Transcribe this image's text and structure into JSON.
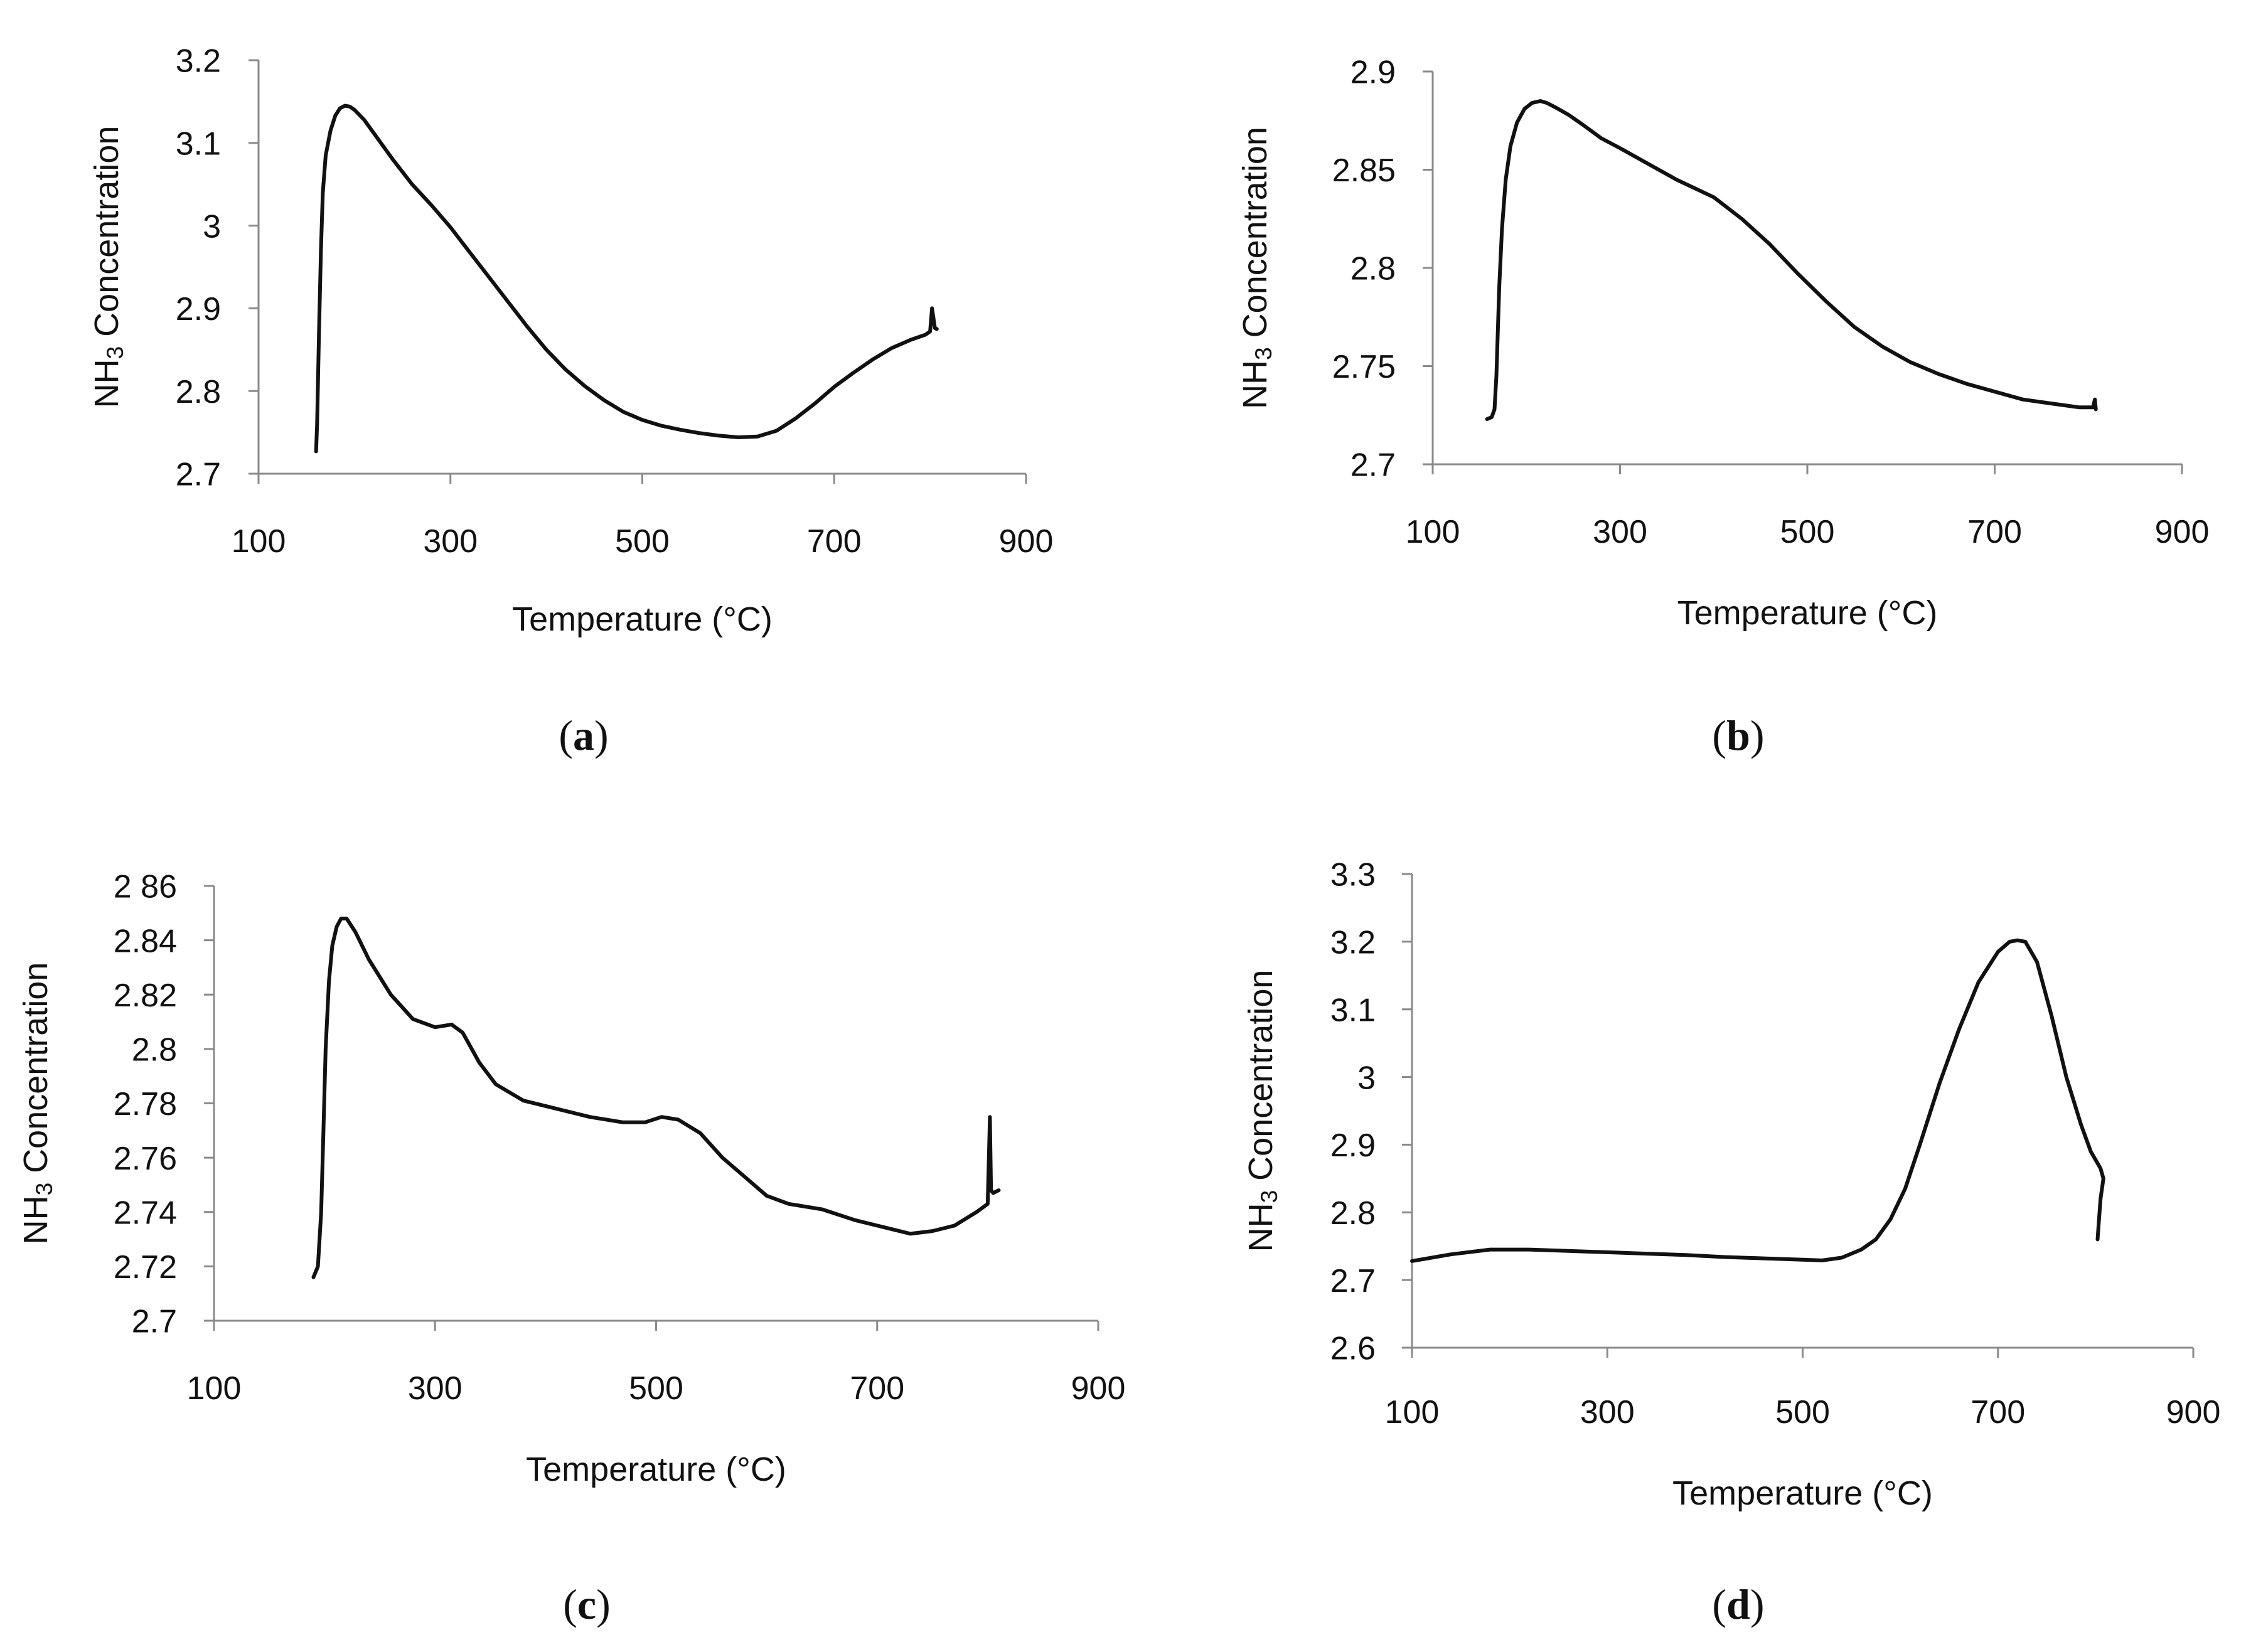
{
  "figure": {
    "panels": [
      {
        "id": "a",
        "caption_open": "(",
        "caption_letter": "a",
        "caption_close": ")"
      },
      {
        "id": "b",
        "caption_open": "(",
        "caption_letter": "b",
        "caption_close": ")"
      },
      {
        "id": "c",
        "caption_open": "(",
        "caption_letter": "c",
        "caption_close": ")"
      },
      {
        "id": "d",
        "caption_open": "(",
        "caption_letter": "d",
        "caption_close": ")"
      }
    ]
  },
  "colors": {
    "line": "#111111",
    "axis": "#8a8a8a",
    "text": "#111111"
  },
  "chart_data": [
    {
      "panel": "a",
      "type": "line",
      "xlabel": "Temperature (°C)",
      "ylabel_main": "NH",
      "ylabel_sub": "3",
      "ylabel_rest": " Concentration",
      "xlim": [
        100,
        900
      ],
      "ylim": [
        2.7,
        3.2
      ],
      "xticks": [
        100,
        300,
        500,
        700,
        900
      ],
      "yticks": [
        2.7,
        2.8,
        2.9,
        3,
        3.1,
        3.2
      ],
      "ytick_labels": [
        "2.7",
        "2.8",
        "2.9",
        "3",
        "3.1",
        "3.2"
      ],
      "series": [
        {
          "name": "NH3",
          "x": [
            160,
            161,
            163,
            165,
            167,
            170,
            175,
            180,
            185,
            190,
            195,
            200,
            210,
            220,
            240,
            260,
            280,
            300,
            320,
            340,
            360,
            380,
            400,
            420,
            440,
            460,
            480,
            500,
            520,
            540,
            560,
            580,
            600,
            620,
            640,
            660,
            680,
            700,
            720,
            740,
            760,
            780,
            795,
            800,
            802,
            805,
            807
          ],
          "y": [
            2.727,
            2.76,
            2.87,
            2.97,
            3.04,
            3.085,
            3.115,
            3.133,
            3.142,
            3.145,
            3.144,
            3.14,
            3.128,
            3.112,
            3.08,
            3.05,
            3.025,
            2.998,
            2.968,
            2.938,
            2.908,
            2.878,
            2.85,
            2.826,
            2.806,
            2.789,
            2.775,
            2.765,
            2.758,
            2.753,
            2.749,
            2.746,
            2.744,
            2.745,
            2.752,
            2.767,
            2.785,
            2.805,
            2.822,
            2.838,
            2.852,
            2.862,
            2.868,
            2.872,
            2.9,
            2.876,
            2.875
          ]
        }
      ]
    },
    {
      "panel": "b",
      "type": "line",
      "xlabel": "Temperature (°C)",
      "ylabel_main": "NH",
      "ylabel_sub": "3",
      "ylabel_rest": " Concentration",
      "xlim": [
        100,
        900
      ],
      "ylim": [
        2.7,
        2.9
      ],
      "xticks": [
        100,
        300,
        500,
        700,
        900
      ],
      "yticks": [
        2.7,
        2.75,
        2.8,
        2.85,
        2.9
      ],
      "ytick_labels": [
        "2.7",
        "2.75",
        "2.8",
        "2.85",
        "2.9"
      ],
      "series": [
        {
          "name": "NH3",
          "x": [
            158,
            163,
            166,
            168,
            171,
            174,
            178,
            183,
            190,
            198,
            206,
            215,
            222,
            230,
            245,
            260,
            280,
            300,
            330,
            360,
            400,
            430,
            460,
            490,
            520,
            550,
            580,
            610,
            640,
            670,
            700,
            730,
            760,
            790,
            805,
            807,
            808
          ],
          "y": [
            2.723,
            2.724,
            2.728,
            2.745,
            2.79,
            2.82,
            2.845,
            2.862,
            2.874,
            2.881,
            2.884,
            2.885,
            2.884,
            2.882,
            2.878,
            2.873,
            2.866,
            2.861,
            2.853,
            2.845,
            2.836,
            2.825,
            2.812,
            2.797,
            2.783,
            2.77,
            2.76,
            2.752,
            2.746,
            2.741,
            2.737,
            2.733,
            2.731,
            2.729,
            2.729,
            2.733,
            2.728
          ]
        }
      ]
    },
    {
      "panel": "c",
      "type": "line",
      "xlabel": "Temperature (°C)",
      "ylabel_main": "NH",
      "ylabel_sub": "3",
      "ylabel_rest": " Concentration",
      "xlim": [
        100,
        900
      ],
      "ylim": [
        2.7,
        2.86
      ],
      "xticks": [
        100,
        300,
        500,
        700,
        900
      ],
      "yticks": [
        2.7,
        2.72,
        2.74,
        2.76,
        2.78,
        2.8,
        2.82,
        2.84,
        2.86
      ],
      "ytick_labels": [
        "2.7",
        "2.72",
        "2.74",
        "2.76",
        "2.78",
        "2.8",
        "2.82",
        "2.84",
        "2 86"
      ],
      "series": [
        {
          "name": "NH3",
          "x": [
            190,
            194,
            197,
            199,
            201,
            204,
            207,
            211,
            215,
            220,
            228,
            240,
            260,
            280,
            300,
            315,
            325,
            340,
            355,
            380,
            410,
            440,
            470,
            490,
            505,
            520,
            540,
            560,
            580,
            600,
            620,
            650,
            680,
            710,
            730,
            750,
            770,
            790,
            800,
            802,
            803,
            805,
            810
          ],
          "y": [
            2.716,
            2.72,
            2.74,
            2.77,
            2.8,
            2.825,
            2.838,
            2.845,
            2.848,
            2.848,
            2.843,
            2.833,
            2.82,
            2.811,
            2.808,
            2.809,
            2.806,
            2.795,
            2.787,
            2.781,
            2.778,
            2.775,
            2.773,
            2.773,
            2.775,
            2.774,
            2.769,
            2.76,
            2.753,
            2.746,
            2.743,
            2.741,
            2.737,
            2.734,
            2.732,
            2.733,
            2.735,
            2.74,
            2.743,
            2.775,
            2.748,
            2.747,
            2.748
          ]
        }
      ]
    },
    {
      "panel": "d",
      "type": "line",
      "xlabel": "Temperature (°C)",
      "ylabel_main": "NH",
      "ylabel_sub": "3",
      "ylabel_rest": " Concentration",
      "xlim": [
        100,
        900
      ],
      "ylim": [
        2.6,
        3.3
      ],
      "xticks": [
        100,
        300,
        500,
        700,
        900
      ],
      "yticks": [
        2.6,
        2.7,
        2.8,
        2.9,
        3,
        3.1,
        3.2,
        3.3
      ],
      "ytick_labels": [
        "2.6",
        "2.7",
        "2.8",
        "2.9",
        "3",
        "3.1",
        "3.2",
        "3.3"
      ],
      "series": [
        {
          "name": "NH3",
          "x": [
            100,
            140,
            180,
            220,
            260,
            300,
            340,
            380,
            420,
            460,
            500,
            520,
            540,
            560,
            575,
            590,
            605,
            620,
            640,
            660,
            680,
            700,
            712,
            720,
            728,
            740,
            755,
            770,
            785,
            795,
            805,
            808,
            805,
            804,
            803,
            802
          ],
          "y": [
            2.728,
            2.738,
            2.745,
            2.745,
            2.743,
            2.741,
            2.739,
            2.737,
            2.734,
            2.732,
            2.73,
            2.729,
            2.733,
            2.745,
            2.76,
            2.79,
            2.835,
            2.9,
            2.99,
            3.07,
            3.14,
            3.185,
            3.2,
            3.202,
            3.2,
            3.17,
            3.09,
            3.0,
            2.93,
            2.89,
            2.865,
            2.85,
            2.82,
            2.8,
            2.78,
            2.76
          ]
        }
      ]
    }
  ]
}
